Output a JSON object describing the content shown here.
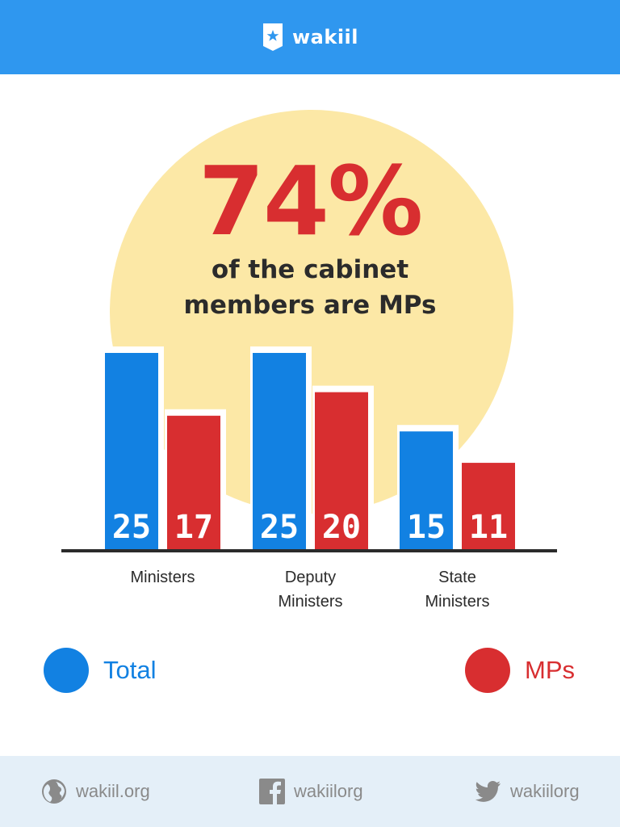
{
  "header": {
    "brand": "wakiil"
  },
  "headline": {
    "percent": "74%",
    "line1": "of the cabinet",
    "line2": "members are MPs"
  },
  "chart_data": {
    "type": "bar",
    "categories": [
      "Ministers",
      "Deputy Ministers",
      "State Ministers"
    ],
    "category_lines": [
      [
        "Ministers"
      ],
      [
        "Deputy",
        "Ministers"
      ],
      [
        "State",
        "Ministers"
      ]
    ],
    "series": [
      {
        "name": "Total",
        "color": "#1281e2",
        "values": [
          25,
          25,
          15
        ]
      },
      {
        "name": "MPs",
        "color": "#d82e30",
        "values": [
          17,
          20,
          11
        ]
      }
    ],
    "ylim": [
      0,
      25
    ]
  },
  "legend": [
    {
      "label": "Total",
      "color": "#1281e2"
    },
    {
      "label": "MPs",
      "color": "#d82e30"
    }
  ],
  "footer": {
    "website": "wakiil.org",
    "facebook": "wakiilorg",
    "twitter": "wakiilorg"
  },
  "colors": {
    "header": "#2f97ef",
    "circle": "#fce8a6",
    "footer": "#e4eff8"
  }
}
